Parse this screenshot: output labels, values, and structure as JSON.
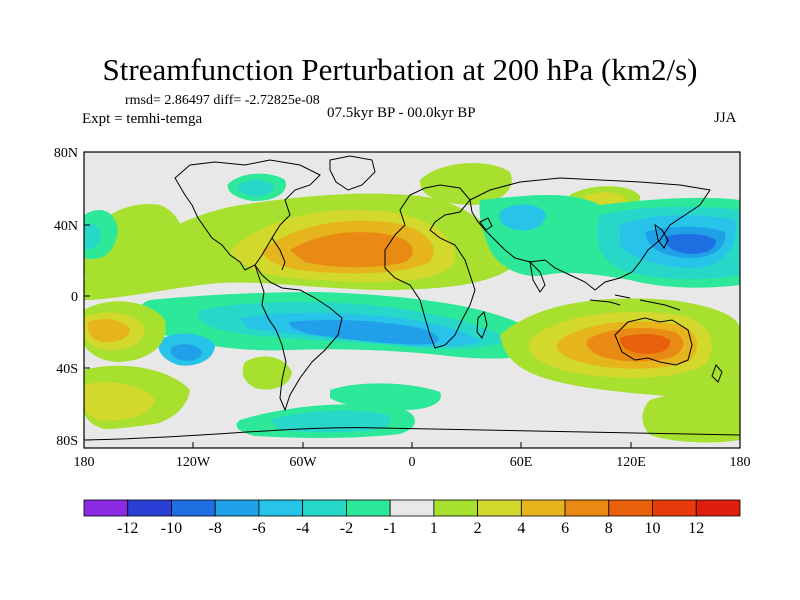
{
  "header": {
    "title": "Streamfunction Perturbation at 200 hPa (km2/s)",
    "stats": "rmsd= 2.86497 diff= -2.72825e-08",
    "experiment": "Expt = temhi-temga",
    "period": "07.5kyr BP - 00.0kyr BP",
    "season": "JJA"
  },
  "axes": {
    "lat_labels": [
      "80N",
      "40N",
      "0",
      "40S",
      "80S"
    ],
    "lon_labels": [
      "180",
      "120W",
      "60W",
      "0",
      "60E",
      "120E",
      "180"
    ]
  },
  "colorbar": {
    "labels": [
      "-12",
      "-10",
      "-8",
      "-6",
      "-4",
      "-2",
      "-1",
      "1",
      "2",
      "4",
      "6",
      "8",
      "10",
      "12"
    ],
    "colors": [
      "#8a2be2",
      "#2b3fd6",
      "#1e6fe0",
      "#1fa0e8",
      "#27c3e8",
      "#27d8c8",
      "#2ee89a",
      "#e8e8e8",
      "#a8e030",
      "#d2d82c",
      "#e6b41c",
      "#e88a14",
      "#e8600c",
      "#e83a0a",
      "#e01e0e"
    ]
  }
}
